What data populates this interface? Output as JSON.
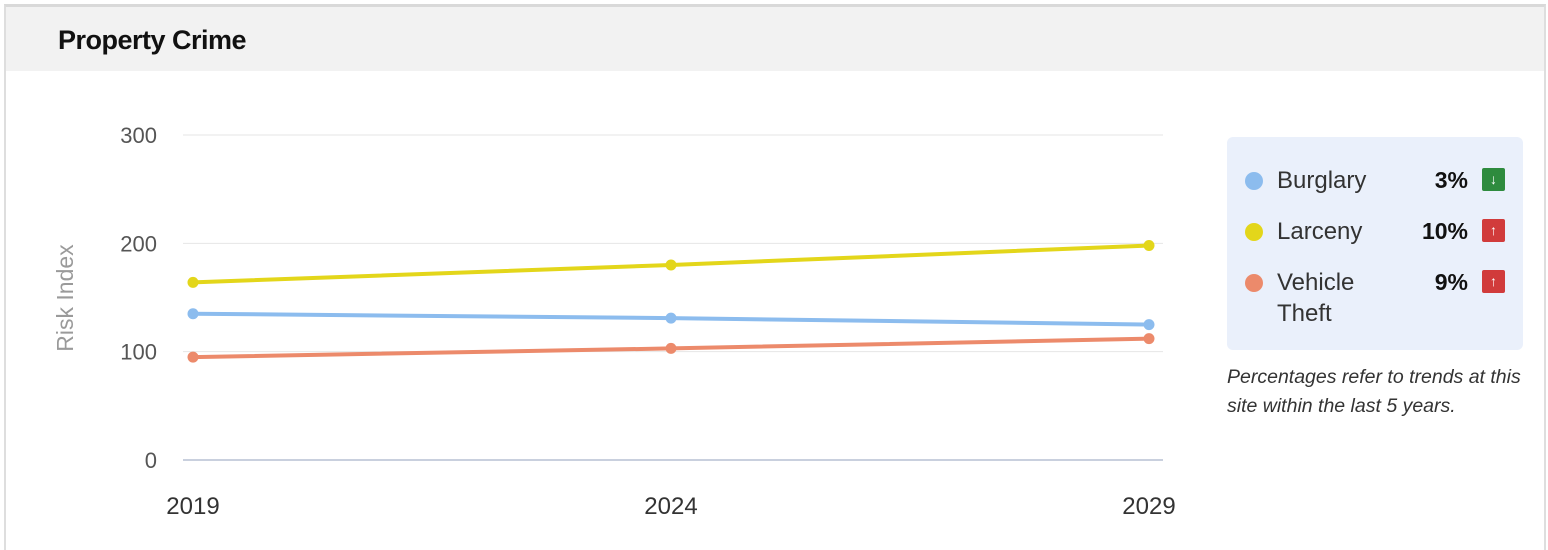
{
  "card": {
    "title": "Property Crime"
  },
  "chart_data": {
    "type": "line",
    "title": "Property Crime",
    "xlabel": "",
    "ylabel": "Risk Index",
    "x": [
      "2019",
      "2024",
      "2029"
    ],
    "ylim": [
      0,
      300
    ],
    "yticks": [
      "0",
      "100",
      "200",
      "300"
    ],
    "grid": true,
    "legend_placement": "right",
    "series": [
      {
        "name": "Burglary",
        "color": "#8cbcee",
        "values": [
          135,
          131,
          125
        ]
      },
      {
        "name": "Larceny",
        "color": "#e3d61a",
        "values": [
          164,
          180,
          198
        ]
      },
      {
        "name": "Vehicle Theft",
        "color": "#ec8a6b",
        "values": [
          95,
          103,
          112
        ]
      }
    ]
  },
  "legend": {
    "items": [
      {
        "label_line1": "Burglary",
        "label_line2": "",
        "pct": "3%",
        "trend": "down",
        "arrow": "↓",
        "color": "#8cbcee",
        "badge_color": "#2e8b3e"
      },
      {
        "label_line1": "Larceny",
        "label_line2": "",
        "pct": "10%",
        "trend": "up",
        "arrow": "↑",
        "color": "#e3d61a",
        "badge_color": "#d13b3b"
      },
      {
        "label_line1": "Vehicle",
        "label_line2": "Theft",
        "pct": "9%",
        "trend": "up",
        "arrow": "↑",
        "color": "#ec8a6b",
        "badge_color": "#d13b3b"
      }
    ]
  },
  "footnote": "Percentages refer to trends at this site within the last 5 years."
}
